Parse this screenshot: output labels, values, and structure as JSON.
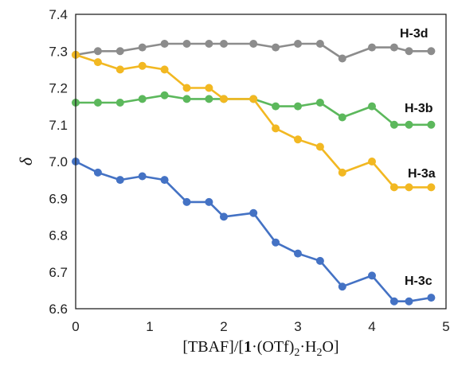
{
  "chart_data": {
    "type": "line",
    "title": "",
    "xlabel": "[TBAF]/[1·(OTf)₂·H₂O]",
    "xlabel_parts": [
      "[TBAF]/[",
      "1",
      "·(OTf)",
      "2",
      "·H",
      "2",
      "O]"
    ],
    "ylabel": "δ",
    "xlim": [
      0,
      5
    ],
    "ylim": [
      6.6,
      7.4
    ],
    "xticks": [
      "0",
      "1",
      "2",
      "3",
      "4",
      "5"
    ],
    "yticks": [
      "6.6",
      "6.7",
      "6.8",
      "6.9",
      "7.0",
      "7.1",
      "7.2",
      "7.3",
      "7.4"
    ],
    "grid": false,
    "x": [
      0,
      0.3,
      0.6,
      0.9,
      1.2,
      1.5,
      1.8,
      2.0,
      2.4,
      2.7,
      3.0,
      3.3,
      3.6,
      4.0,
      4.3,
      4.5,
      4.8
    ],
    "series": [
      {
        "name": "H-3d",
        "color": "#8c8c8c",
        "values": [
          7.29,
          7.3,
          7.3,
          7.31,
          7.32,
          7.32,
          7.32,
          7.32,
          7.32,
          7.31,
          7.32,
          7.32,
          7.28,
          7.31,
          7.31,
          7.3,
          7.3
        ]
      },
      {
        "name": "H-3b",
        "color": "#5cb85c",
        "values": [
          7.16,
          7.16,
          7.16,
          7.17,
          7.18,
          7.17,
          7.17,
          7.17,
          7.17,
          7.15,
          7.15,
          7.16,
          7.12,
          7.15,
          7.1,
          7.1,
          7.1
        ]
      },
      {
        "name": "H-3a",
        "color": "#f2b822",
        "values": [
          7.29,
          7.27,
          7.25,
          7.26,
          7.25,
          7.2,
          7.2,
          7.17,
          7.17,
          7.09,
          7.06,
          7.04,
          6.97,
          7.0,
          6.93,
          6.93,
          6.93
        ]
      },
      {
        "name": "H-3c",
        "color": "#4472c4",
        "values": [
          7.0,
          6.97,
          6.95,
          6.96,
          6.95,
          6.89,
          6.89,
          6.85,
          6.86,
          6.78,
          6.75,
          6.73,
          6.66,
          6.69,
          6.62,
          6.62,
          6.63
        ]
      }
    ]
  }
}
